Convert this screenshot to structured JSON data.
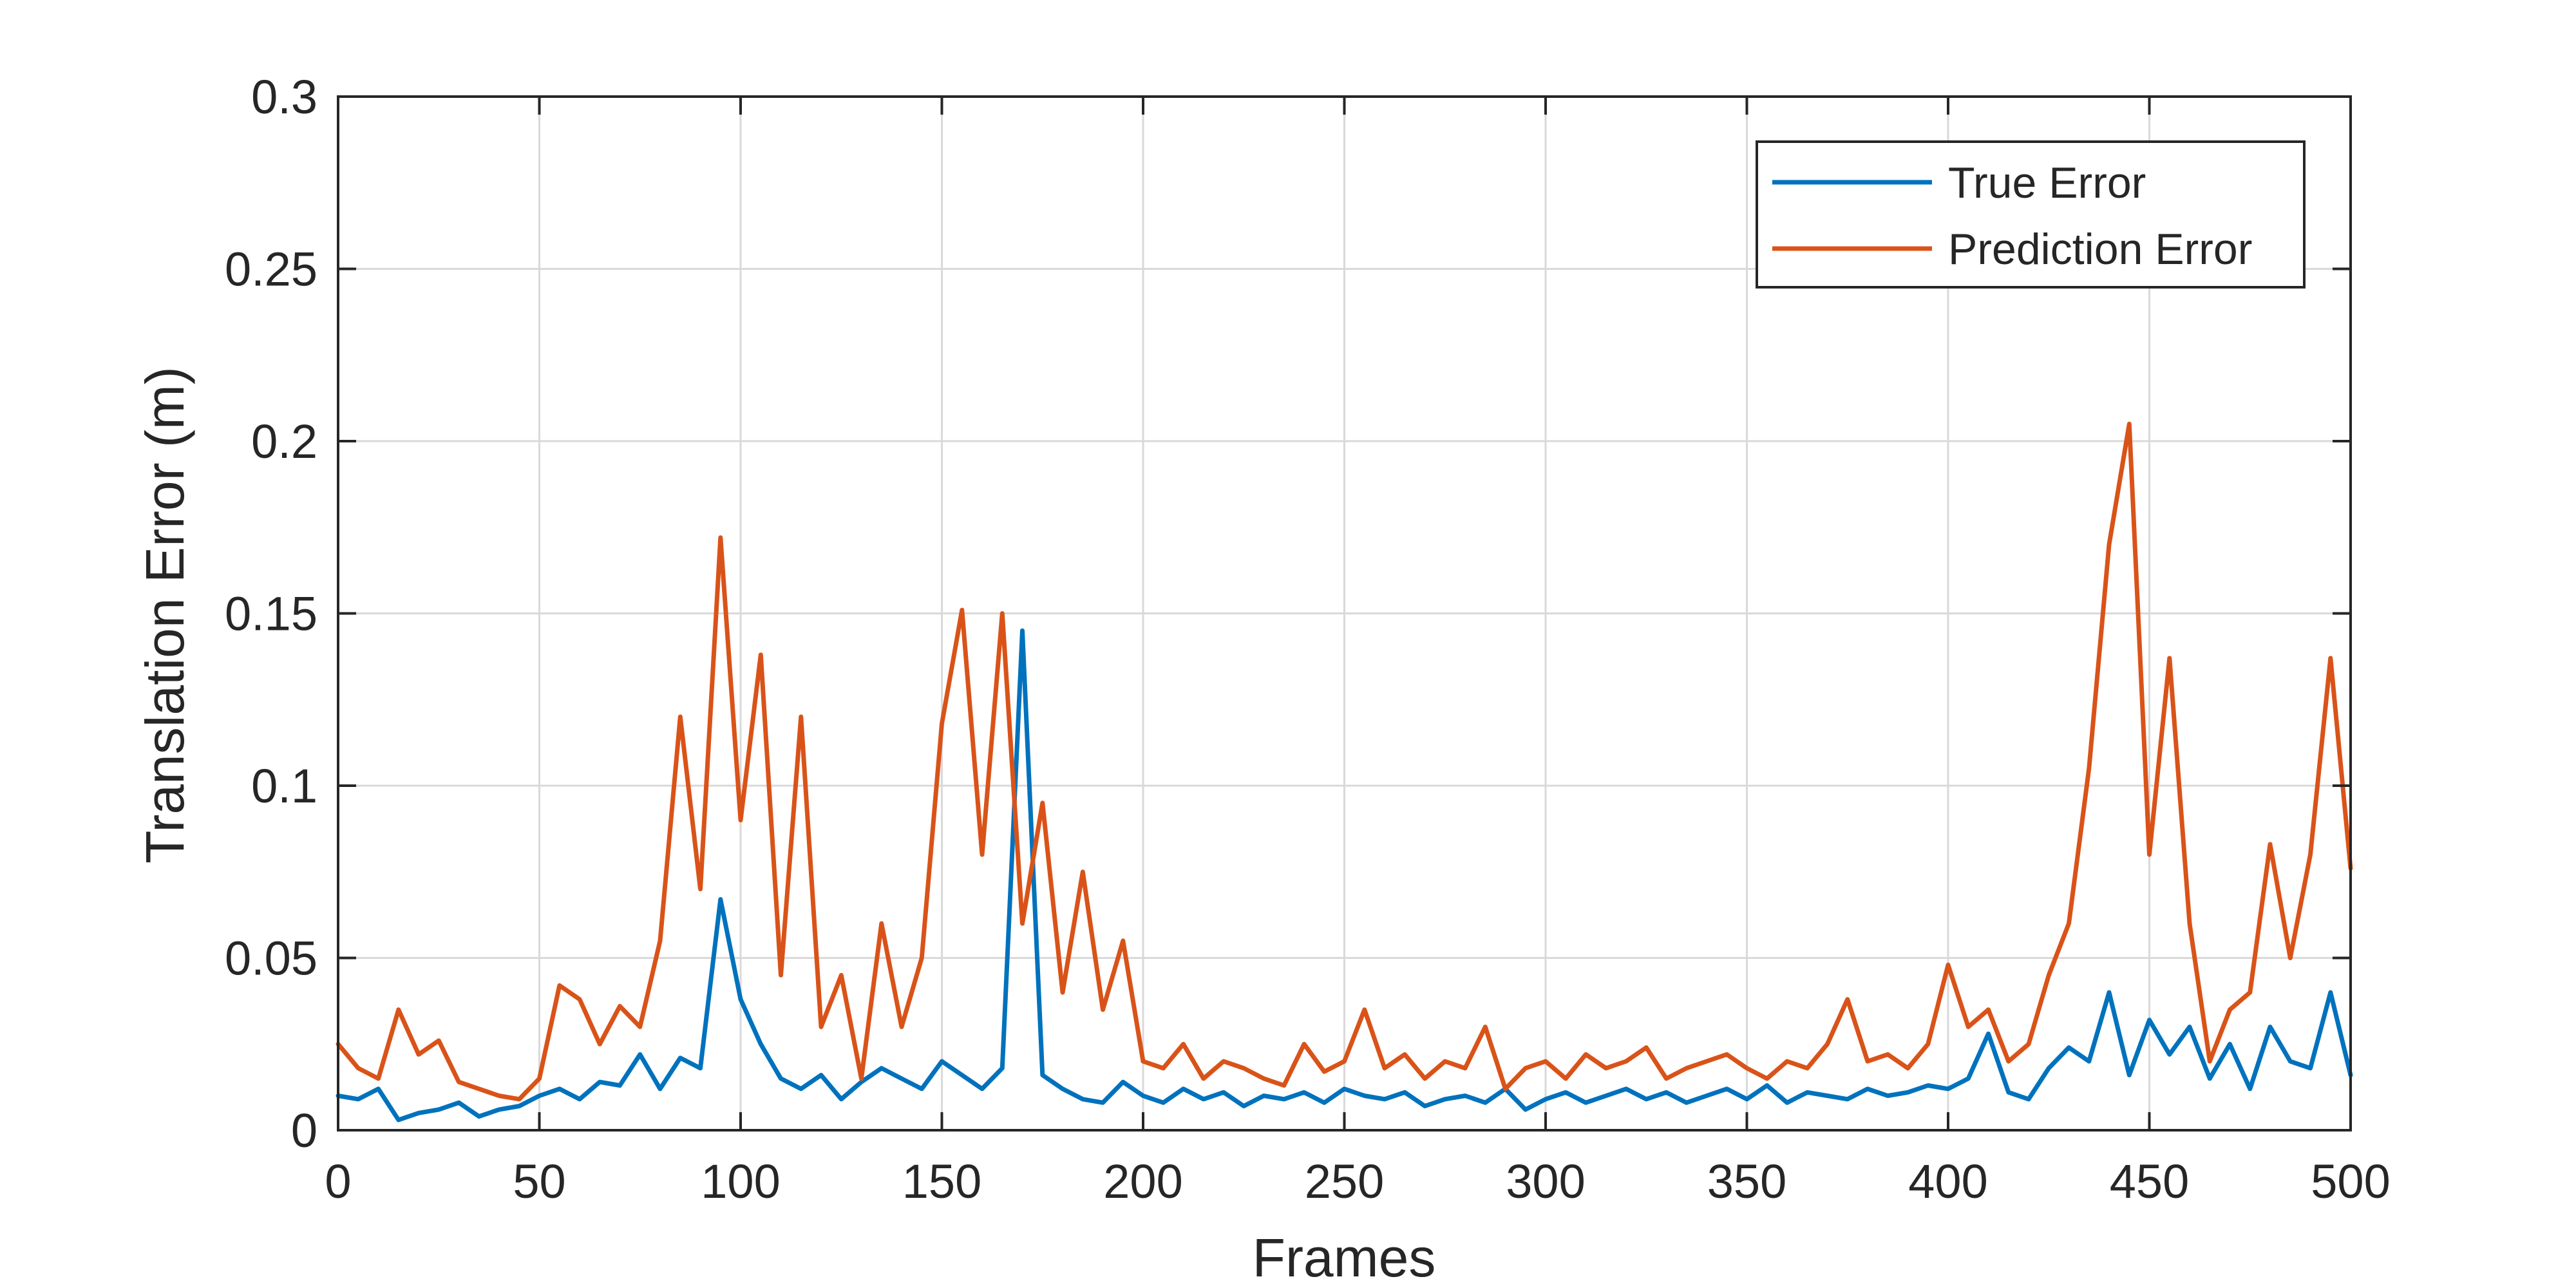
{
  "chart_data": {
    "type": "line",
    "title": "",
    "xlabel": "Frames",
    "ylabel": "Translation Error (m)",
    "xlim": [
      0,
      500
    ],
    "ylim": [
      0,
      0.3
    ],
    "xticks": [
      0,
      50,
      100,
      150,
      200,
      250,
      300,
      350,
      400,
      450,
      500
    ],
    "xtick_labels": [
      "0",
      "50",
      "100",
      "150",
      "200",
      "250",
      "300",
      "350",
      "400",
      "450",
      "500"
    ],
    "yticks": [
      0,
      0.05,
      0.1,
      0.15,
      0.2,
      0.25,
      0.3
    ],
    "ytick_labels": [
      "0",
      "0.05",
      "0.1",
      "0.15",
      "0.2",
      "0.25",
      "0.3"
    ],
    "grid": true,
    "legend_position": "top-right",
    "x": [
      0,
      5,
      10,
      15,
      20,
      25,
      30,
      35,
      40,
      45,
      50,
      55,
      60,
      65,
      70,
      75,
      80,
      85,
      90,
      95,
      100,
      105,
      110,
      115,
      120,
      125,
      130,
      135,
      140,
      145,
      150,
      155,
      160,
      165,
      170,
      175,
      180,
      185,
      190,
      195,
      200,
      205,
      210,
      215,
      220,
      225,
      230,
      235,
      240,
      245,
      250,
      255,
      260,
      265,
      270,
      275,
      280,
      285,
      290,
      295,
      300,
      305,
      310,
      315,
      320,
      325,
      330,
      335,
      340,
      345,
      350,
      355,
      360,
      365,
      370,
      375,
      380,
      385,
      390,
      395,
      400,
      405,
      410,
      415,
      420,
      425,
      430,
      435,
      440,
      445,
      450,
      455,
      460,
      465,
      470,
      475,
      480,
      485,
      490,
      495,
      500
    ],
    "series": [
      {
        "name": "True Error",
        "color": "#0072BD",
        "values": [
          0.01,
          0.009,
          0.012,
          0.003,
          0.005,
          0.006,
          0.008,
          0.004,
          0.006,
          0.007,
          0.01,
          0.012,
          0.009,
          0.014,
          0.013,
          0.022,
          0.012,
          0.021,
          0.018,
          0.067,
          0.038,
          0.025,
          0.015,
          0.012,
          0.016,
          0.009,
          0.014,
          0.018,
          0.015,
          0.012,
          0.02,
          0.016,
          0.012,
          0.018,
          0.145,
          0.016,
          0.012,
          0.009,
          0.008,
          0.014,
          0.01,
          0.008,
          0.012,
          0.009,
          0.011,
          0.007,
          0.01,
          0.009,
          0.011,
          0.008,
          0.012,
          0.01,
          0.009,
          0.011,
          0.007,
          0.009,
          0.01,
          0.008,
          0.012,
          0.006,
          0.009,
          0.011,
          0.008,
          0.01,
          0.012,
          0.009,
          0.011,
          0.008,
          0.01,
          0.012,
          0.009,
          0.013,
          0.008,
          0.011,
          0.01,
          0.009,
          0.012,
          0.01,
          0.011,
          0.013,
          0.012,
          0.015,
          0.028,
          0.011,
          0.009,
          0.018,
          0.024,
          0.02,
          0.04,
          0.016,
          0.032,
          0.022,
          0.03,
          0.015,
          0.025,
          0.012,
          0.03,
          0.02,
          0.018,
          0.04,
          0.016
        ]
      },
      {
        "name": "Prediction Error",
        "color": "#D95319",
        "values": [
          0.025,
          0.018,
          0.015,
          0.035,
          0.022,
          0.026,
          0.014,
          0.012,
          0.01,
          0.009,
          0.015,
          0.042,
          0.038,
          0.025,
          0.036,
          0.03,
          0.055,
          0.12,
          0.07,
          0.172,
          0.09,
          0.138,
          0.045,
          0.12,
          0.03,
          0.045,
          0.015,
          0.06,
          0.03,
          0.05,
          0.118,
          0.151,
          0.08,
          0.15,
          0.06,
          0.095,
          0.04,
          0.075,
          0.035,
          0.055,
          0.02,
          0.018,
          0.025,
          0.015,
          0.02,
          0.018,
          0.015,
          0.013,
          0.025,
          0.017,
          0.02,
          0.035,
          0.018,
          0.022,
          0.015,
          0.02,
          0.018,
          0.03,
          0.012,
          0.018,
          0.02,
          0.015,
          0.022,
          0.018,
          0.02,
          0.024,
          0.015,
          0.018,
          0.02,
          0.022,
          0.018,
          0.015,
          0.02,
          0.018,
          0.025,
          0.038,
          0.02,
          0.022,
          0.018,
          0.025,
          0.048,
          0.03,
          0.035,
          0.02,
          0.025,
          0.045,
          0.06,
          0.105,
          0.17,
          0.205,
          0.08,
          0.137,
          0.06,
          0.02,
          0.035,
          0.04,
          0.083,
          0.05,
          0.08,
          0.137,
          0.076
        ]
      }
    ]
  }
}
